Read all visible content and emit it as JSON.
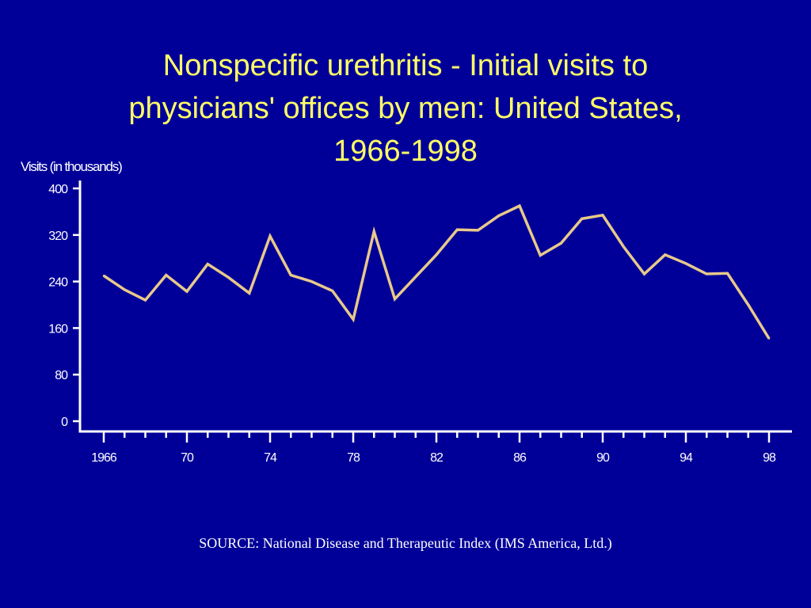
{
  "slide": {
    "title_lines": [
      "Nonspecific urethritis - Initial visits to",
      "physicians' offices by men: United States,",
      "1966-1998"
    ],
    "source": "SOURCE: National Disease and Therapeutic Index (IMS America, Ltd.)"
  },
  "colors": {
    "background": "#000099",
    "title": "#ffff66",
    "axis": "#ffffff",
    "line": "#e8c98a",
    "text": "#ffffff"
  },
  "chart_data": {
    "type": "line",
    "title": "Nonspecific urethritis - Initial visits to physicians' offices by men: United States, 1966-1998",
    "ylabel": "Visits (in thousands)",
    "xlabel": "",
    "ylim": [
      0,
      400
    ],
    "xlim": [
      1966,
      1998
    ],
    "yticks": [
      0,
      80,
      160,
      240,
      320,
      400
    ],
    "xticks": [
      1966,
      1970,
      1974,
      1978,
      1982,
      1986,
      1990,
      1994,
      1998
    ],
    "xtick_labels": [
      "1966",
      "70",
      "74",
      "78",
      "82",
      "86",
      "90",
      "94",
      "98"
    ],
    "grid": false,
    "legend": "none",
    "x": [
      1966,
      1967,
      1968,
      1969,
      1970,
      1971,
      1972,
      1973,
      1974,
      1975,
      1976,
      1977,
      1978,
      1979,
      1980,
      1981,
      1982,
      1983,
      1984,
      1985,
      1986,
      1987,
      1988,
      1989,
      1990,
      1991,
      1992,
      1993,
      1994,
      1995,
      1996,
      1997,
      1998
    ],
    "series": [
      {
        "values": [
          250,
          226,
          208,
          251,
          223,
          270,
          247,
          220,
          318,
          251,
          240,
          224,
          175,
          326,
          210,
          248,
          286,
          329,
          328,
          353,
          370,
          285,
          306,
          348,
          354,
          300,
          253,
          286,
          271,
          253,
          254,
          200,
          142
        ]
      }
    ]
  }
}
